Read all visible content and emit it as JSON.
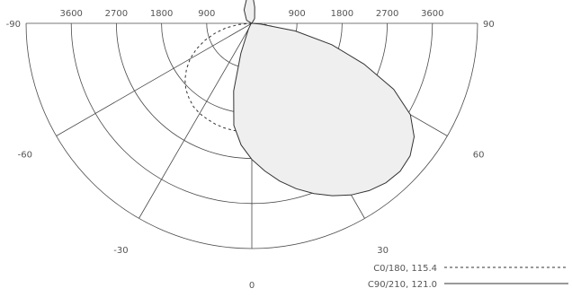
{
  "chart_data": {
    "type": "polar",
    "ring_values": [
      900,
      1800,
      2700,
      3600,
      4500
    ],
    "ring_tick_labels": {
      "left": [
        "3600",
        "2700",
        "1800",
        "900"
      ],
      "right": [
        "900",
        "1800",
        "2700",
        "3600"
      ]
    },
    "angle_labels": [
      {
        "angle": -90,
        "text": "-90"
      },
      {
        "angle": -60,
        "text": "-60"
      },
      {
        "angle": -30,
        "text": "-30"
      },
      {
        "angle": 0,
        "text": "0"
      },
      {
        "angle": 30,
        "text": "30"
      },
      {
        "angle": 60,
        "text": "60"
      },
      {
        "angle": 90,
        "text": "90"
      }
    ],
    "radial_angles": [
      -90,
      -60,
      -30,
      0,
      30,
      60,
      90
    ],
    "series": [
      {
        "name": "C0/180, 115.4",
        "style": "dashed",
        "fill": "none",
        "color": "#333333",
        "points": [
          [
            -90,
            0
          ],
          [
            -85,
            260
          ],
          [
            -80,
            520
          ],
          [
            -75,
            760
          ],
          [
            -70,
            1000
          ],
          [
            -65,
            1220
          ],
          [
            -60,
            1420
          ],
          [
            -55,
            1590
          ],
          [
            -50,
            1740
          ],
          [
            -45,
            1860
          ],
          [
            -40,
            1950
          ],
          [
            -35,
            2030
          ],
          [
            -30,
            2080
          ],
          [
            -25,
            2110
          ],
          [
            -20,
            2140
          ],
          [
            -15,
            2160
          ],
          [
            -10,
            2170
          ],
          [
            -5,
            2175
          ],
          [
            0,
            2180
          ],
          [
            5,
            2175
          ],
          [
            10,
            2170
          ],
          [
            15,
            2160
          ],
          [
            20,
            2140
          ],
          [
            25,
            2110
          ],
          [
            30,
            2080
          ],
          [
            35,
            2030
          ],
          [
            40,
            1950
          ],
          [
            45,
            1860
          ],
          [
            50,
            1740
          ],
          [
            55,
            1590
          ],
          [
            60,
            1420
          ],
          [
            65,
            1220
          ],
          [
            70,
            1000
          ],
          [
            75,
            760
          ],
          [
            80,
            520
          ],
          [
            85,
            260
          ],
          [
            90,
            0
          ]
        ]
      },
      {
        "name": "C90/210, 121.0",
        "style": "solid",
        "fill": "#efefef",
        "color": "#333333",
        "points": [
          [
            -95,
            0
          ],
          [
            -120,
            120
          ],
          [
            -150,
            310
          ],
          [
            -170,
            540
          ],
          [
            178,
            540
          ],
          [
            170,
            330
          ],
          [
            150,
            110
          ],
          [
            100,
            0
          ],
          [
            85,
            180
          ],
          [
            80,
            880
          ],
          [
            75,
            1650
          ],
          [
            70,
            2380
          ],
          [
            65,
            3120
          ],
          [
            60,
            3650
          ],
          [
            55,
            3950
          ],
          [
            50,
            4120
          ],
          [
            45,
            4180
          ],
          [
            40,
            4160
          ],
          [
            35,
            4080
          ],
          [
            30,
            3960
          ],
          [
            25,
            3800
          ],
          [
            20,
            3620
          ],
          [
            15,
            3420
          ],
          [
            10,
            3200
          ],
          [
            5,
            2960
          ],
          [
            0,
            2720
          ],
          [
            -5,
            2440
          ],
          [
            -10,
            2070
          ],
          [
            -15,
            1400
          ],
          [
            -20,
            640
          ],
          [
            -30,
            140
          ],
          [
            -60,
            20
          ]
        ]
      }
    ]
  }
}
